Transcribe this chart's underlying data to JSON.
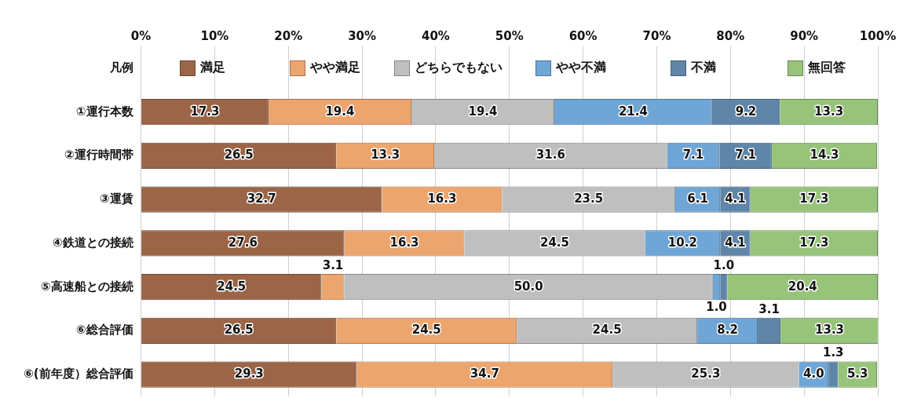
{
  "chart_data": {
    "type": "bar",
    "orientation": "horizontal",
    "stacked": true,
    "legend": "top",
    "grid": "x",
    "categories": [
      "凡例",
      "①運行本数",
      "②運行時間帯",
      "③運賃",
      "④鉄道との接続",
      "⑤高速船との接続",
      "⑥総合評価",
      "⑥(前年度）総合評価"
    ],
    "xlim": [
      0,
      100
    ],
    "xticks": [
      {
        "value": 0,
        "label": "0%"
      },
      {
        "value": 10,
        "label": "10%"
      },
      {
        "value": 20,
        "label": "20%"
      },
      {
        "value": 30,
        "label": "30%"
      },
      {
        "value": 40,
        "label": "40%"
      },
      {
        "value": 50,
        "label": "50%"
      },
      {
        "value": 60,
        "label": "60%"
      },
      {
        "value": 70,
        "label": "70%"
      },
      {
        "value": 80,
        "label": "80%"
      },
      {
        "value": 90,
        "label": "90%"
      },
      {
        "value": 100,
        "label": "100%"
      }
    ],
    "series": [
      {
        "name": "満足",
        "color": "#9c6547",
        "values": [
          null,
          17.3,
          26.5,
          32.7,
          27.6,
          24.5,
          26.5,
          29.3
        ],
        "value_labels": [
          null,
          "17.3",
          "26.5",
          "32.7",
          "27.6",
          "24.5",
          "26.5",
          "29.3"
        ]
      },
      {
        "name": "やや満足",
        "color": "#eda56e",
        "values": [
          null,
          19.4,
          13.3,
          16.3,
          16.3,
          3.1,
          24.5,
          34.7
        ],
        "value_labels": [
          null,
          "19.4",
          "13.3",
          "16.3",
          "16.3",
          "3.1",
          "24.5",
          "34.7"
        ]
      },
      {
        "name": "どちらでもない",
        "color": "#bfbfbf",
        "values": [
          null,
          19.4,
          31.6,
          23.5,
          24.5,
          50.0,
          24.5,
          25.3
        ],
        "value_labels": [
          null,
          "19.4",
          "31.6",
          "23.5",
          "24.5",
          "50.0",
          "24.5",
          "25.3"
        ]
      },
      {
        "name": "やや不満",
        "color": "#6fa6d6",
        "values": [
          null,
          21.4,
          7.1,
          6.1,
          10.2,
          1.0,
          8.2,
          4.0
        ],
        "value_labels": [
          null,
          "21.4",
          "7.1",
          "6.1",
          "10.2",
          "1.0",
          "8.2",
          "4.0"
        ]
      },
      {
        "name": "不満",
        "color": "#5f86a8",
        "values": [
          null,
          9.2,
          7.1,
          4.1,
          4.1,
          1.0,
          3.1,
          1.3
        ],
        "value_labels": [
          null,
          "9.2",
          "7.1",
          "4.1",
          "4.1",
          "1.0",
          "3.1",
          "1.3"
        ]
      },
      {
        "name": "無回答",
        "color": "#97c47a",
        "values": [
          null,
          13.3,
          14.3,
          17.3,
          17.3,
          20.4,
          13.3,
          5.3
        ],
        "value_labels": [
          null,
          "13.3",
          "14.3",
          "17.3",
          "17.3",
          "20.4",
          "13.3",
          "5.3"
        ]
      }
    ]
  }
}
